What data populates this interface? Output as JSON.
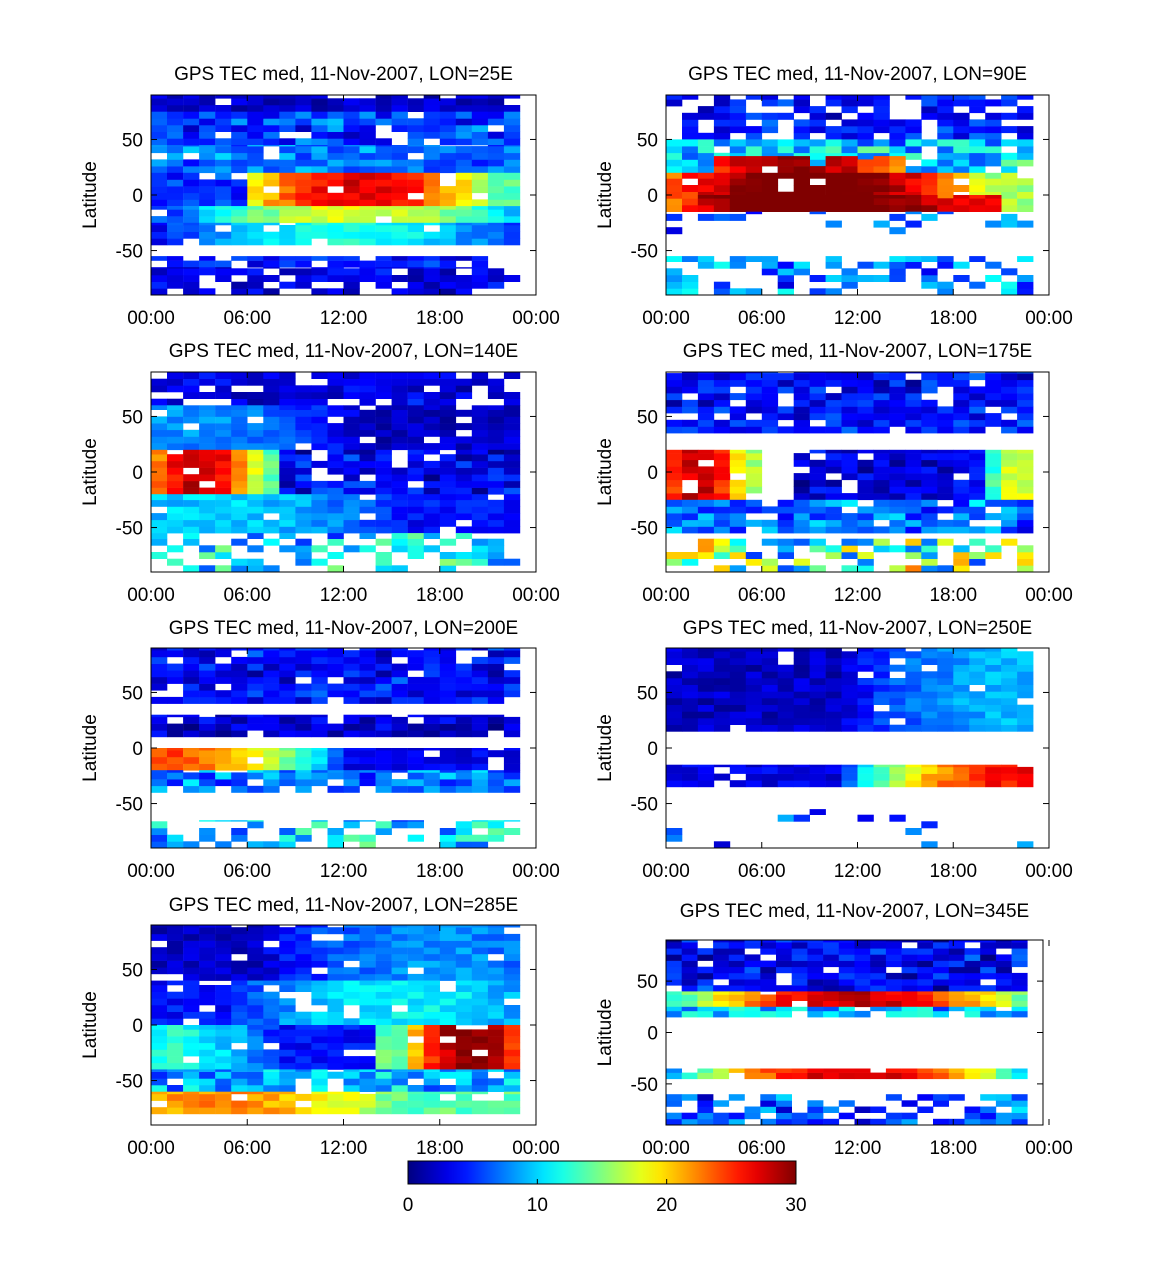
{
  "figure": {
    "colorbar": {
      "colormap": "jet",
      "range": [
        0,
        30
      ],
      "ticks": [
        "0",
        "10",
        "20",
        "30"
      ]
    }
  },
  "chart_data": [
    {
      "type": "heatmap",
      "title": "GPS TEC med, 11-Nov-2007, LON=25E",
      "ylabel": "Latitude",
      "x_ticks": [
        "00:00",
        "06:00",
        "12:00",
        "18:00",
        "00:00"
      ],
      "y_ticks": [
        "50",
        "0",
        "-50"
      ],
      "xlim_hours": [
        0,
        24
      ],
      "ylim": [
        -90,
        90
      ],
      "bands": [
        {
          "lat": [
            75,
            90
          ],
          "hours": [
            0,
            23
          ],
          "tec": [
            2,
            2
          ]
        },
        {
          "lat": [
            45,
            75
          ],
          "hours": [
            0,
            23
          ],
          "tec": [
            3,
            8
          ]
        },
        {
          "lat": [
            20,
            45
          ],
          "hours": [
            0,
            23
          ],
          "tec": [
            5,
            9
          ]
        },
        {
          "lat": [
            -10,
            20
          ],
          "hours": [
            0,
            6
          ],
          "tec": [
            4,
            6
          ]
        },
        {
          "lat": [
            -10,
            20
          ],
          "hours": [
            6,
            23
          ],
          "tec": [
            14,
            27
          ],
          "peak_hour": 13
        },
        {
          "lat": [
            -25,
            -10
          ],
          "hours": [
            0,
            23
          ],
          "tec": [
            6,
            18
          ],
          "peak_hour": 13
        },
        {
          "lat": [
            -45,
            -25
          ],
          "hours": [
            0,
            23
          ],
          "tec": [
            4,
            12
          ],
          "peak_hour": 12
        },
        {
          "lat": [
            -65,
            -55
          ],
          "hours": [
            0,
            23
          ],
          "tec": [
            3,
            6
          ],
          "fill": 0.8
        },
        {
          "lat": [
            -90,
            -65
          ],
          "hours": [
            0,
            23
          ],
          "tec": [
            2,
            4
          ],
          "fill": 0.7
        }
      ]
    },
    {
      "type": "heatmap",
      "title": "GPS TEC med, 11-Nov-2007, LON=90E",
      "ylabel": "Latitude",
      "x_ticks": [
        "00:00",
        "06:00",
        "12:00",
        "18:00",
        "00:00"
      ],
      "y_ticks": [
        "50",
        "0",
        "-50"
      ],
      "xlim_hours": [
        0,
        24
      ],
      "ylim": [
        -90,
        90
      ],
      "bands": [
        {
          "lat": [
            50,
            90
          ],
          "hours": [
            0,
            23
          ],
          "tec": [
            2,
            6
          ],
          "fill": 0.7
        },
        {
          "lat": [
            20,
            50
          ],
          "hours": [
            0,
            23
          ],
          "tec": [
            6,
            14
          ],
          "fill": 0.85
        },
        {
          "lat": [
            20,
            35
          ],
          "hours": [
            3,
            15
          ],
          "tec": [
            22,
            30
          ],
          "peak_hour": 8
        },
        {
          "lat": [
            -15,
            20
          ],
          "hours": [
            0,
            23
          ],
          "tec": [
            16,
            32
          ],
          "peak_hour": 9
        },
        {
          "lat": [
            -15,
            0
          ],
          "hours": [
            2,
            21
          ],
          "tec": [
            26,
            32
          ],
          "peak_hour": 9
        },
        {
          "lat": [
            -35,
            -15
          ],
          "hours": [
            0,
            23
          ],
          "tec": [
            4,
            10
          ],
          "fill": 0.2
        },
        {
          "lat": [
            -90,
            -55
          ],
          "hours": [
            0,
            23
          ],
          "tec": [
            4,
            11
          ],
          "fill": 0.5
        }
      ]
    },
    {
      "type": "heatmap",
      "title": "GPS TEC med, 11-Nov-2007, LON=140E",
      "ylabel": "Latitude",
      "x_ticks": [
        "00:00",
        "06:00",
        "12:00",
        "18:00",
        "00:00"
      ],
      "y_ticks": [
        "50",
        "0",
        "-50"
      ],
      "xlim_hours": [
        0,
        24
      ],
      "ylim": [
        -90,
        90
      ],
      "bands": [
        {
          "lat": [
            60,
            90
          ],
          "hours": [
            0,
            23
          ],
          "tec": [
            2,
            4
          ],
          "fill": 0.85
        },
        {
          "lat": [
            20,
            60
          ],
          "hours": [
            0,
            23
          ],
          "tec": [
            2,
            8
          ],
          "peak_hour": 2
        },
        {
          "lat": [
            -20,
            20
          ],
          "hours": [
            0,
            8
          ],
          "tec": [
            14,
            28
          ],
          "peak_hour": 3
        },
        {
          "lat": [
            -20,
            20
          ],
          "hours": [
            8,
            23
          ],
          "tec": [
            1,
            6
          ]
        },
        {
          "lat": [
            -55,
            -20
          ],
          "hours": [
            0,
            23
          ],
          "tec": [
            4,
            10
          ],
          "peak_hour": 4
        },
        {
          "lat": [
            -90,
            -55
          ],
          "hours": [
            0,
            23
          ],
          "tec": [
            6,
            15
          ],
          "fill": 0.5
        }
      ]
    },
    {
      "type": "heatmap",
      "title": "GPS TEC med, 11-Nov-2007, LON=175E",
      "ylabel": "Latitude",
      "x_ticks": [
        "00:00",
        "06:00",
        "12:00",
        "18:00",
        "00:00"
      ],
      "y_ticks": [
        "50",
        "0",
        "-50"
      ],
      "xlim_hours": [
        0,
        24
      ],
      "ylim": [
        -90,
        90
      ],
      "bands": [
        {
          "lat": [
            35,
            90
          ],
          "hours": [
            0,
            23
          ],
          "tec": [
            2,
            6
          ],
          "fill": 0.9
        },
        {
          "lat": [
            -25,
            20
          ],
          "hours": [
            0,
            6
          ],
          "tec": [
            16,
            28
          ],
          "peak_hour": 2
        },
        {
          "lat": [
            -25,
            20
          ],
          "hours": [
            8,
            18
          ],
          "tec": [
            1,
            4
          ]
        },
        {
          "lat": [
            -25,
            20
          ],
          "hours": [
            18,
            23
          ],
          "tec": [
            4,
            18
          ],
          "peak_hour": 22
        },
        {
          "lat": [
            -55,
            -25
          ],
          "hours": [
            0,
            23
          ],
          "tec": [
            4,
            10
          ]
        },
        {
          "lat": [
            -90,
            -60
          ],
          "hours": [
            0,
            23
          ],
          "tec": [
            6,
            22
          ],
          "fill": 0.6
        }
      ]
    },
    {
      "type": "heatmap",
      "title": "GPS TEC med, 11-Nov-2007, LON=200E",
      "ylabel": "Latitude",
      "x_ticks": [
        "00:00",
        "06:00",
        "12:00",
        "18:00",
        "00:00"
      ],
      "y_ticks": [
        "50",
        "0",
        "-50"
      ],
      "xlim_hours": [
        0,
        24
      ],
      "ylim": [
        -90,
        90
      ],
      "bands": [
        {
          "lat": [
            40,
            90
          ],
          "hours": [
            0,
            23
          ],
          "tec": [
            2,
            6
          ]
        },
        {
          "lat": [
            10,
            30
          ],
          "hours": [
            0,
            23
          ],
          "tec": [
            1,
            4
          ],
          "fill": 0.9
        },
        {
          "lat": [
            -20,
            0
          ],
          "hours": [
            0,
            23
          ],
          "tec": [
            3,
            24
          ],
          "peak_hour": 1
        },
        {
          "lat": [
            -40,
            -20
          ],
          "hours": [
            0,
            23
          ],
          "tec": [
            4,
            10
          ],
          "fill": 0.85
        },
        {
          "lat": [
            -90,
            -65
          ],
          "hours": [
            0,
            23
          ],
          "tec": [
            6,
            14
          ],
          "fill": 0.5
        }
      ]
    },
    {
      "type": "heatmap",
      "title": "GPS TEC med, 11-Nov-2007, LON=250E",
      "ylabel": "Latitude",
      "x_ticks": [
        "00:00",
        "06:00",
        "12:00",
        "18:00",
        "00:00"
      ],
      "y_ticks": [
        "50",
        "0",
        "-50"
      ],
      "xlim_hours": [
        0,
        24
      ],
      "ylim": [
        -90,
        90
      ],
      "bands": [
        {
          "lat": [
            15,
            90
          ],
          "hours": [
            0,
            23
          ],
          "tec": [
            2,
            9
          ],
          "peak_hour": 22
        },
        {
          "lat": [
            -35,
            -15
          ],
          "hours": [
            0,
            23
          ],
          "tec": [
            3,
            26
          ],
          "peak_hour": 22,
          "fill": 0.95
        },
        {
          "lat": [
            -90,
            -55
          ],
          "hours": [
            0,
            23
          ],
          "tec": [
            3,
            8
          ],
          "fill": 0.12
        }
      ]
    },
    {
      "type": "heatmap",
      "title": "GPS TEC med, 11-Nov-2007, LON=285E",
      "ylabel": "Latitude",
      "x_ticks": [
        "00:00",
        "06:00",
        "12:00",
        "18:00",
        "00:00"
      ],
      "y_ticks": [
        "50",
        "0",
        "-50"
      ],
      "xlim_hours": [
        0,
        24
      ],
      "ylim": [
        -90,
        90
      ],
      "bands": [
        {
          "lat": [
            40,
            90
          ],
          "hours": [
            0,
            23
          ],
          "tec": [
            2,
            8
          ],
          "peak_hour": 18
        },
        {
          "lat": [
            0,
            40
          ],
          "hours": [
            0,
            23
          ],
          "tec": [
            4,
            11
          ],
          "peak_hour": 16
        },
        {
          "lat": [
            -40,
            0
          ],
          "hours": [
            0,
            14
          ],
          "tec": [
            4,
            12
          ],
          "peak_hour": 1
        },
        {
          "lat": [
            -40,
            0
          ],
          "hours": [
            14,
            23
          ],
          "tec": [
            14,
            30
          ],
          "peak_hour": 20
        },
        {
          "lat": [
            -60,
            -40
          ],
          "hours": [
            0,
            23
          ],
          "tec": [
            6,
            12
          ]
        },
        {
          "lat": [
            -80,
            -60
          ],
          "hours": [
            0,
            23
          ],
          "tec": [
            14,
            22
          ],
          "peak_hour": 4
        }
      ]
    },
    {
      "type": "heatmap",
      "title": "GPS TEC med, 11-Nov-2007, LON=345E",
      "ylabel": "Latitude",
      "x_ticks": [
        "00:00",
        "06:00",
        "12:00",
        "18:00",
        "00:00"
      ],
      "y_ticks": [
        "50",
        "0",
        "-50"
      ],
      "xlim_hours": [
        0,
        24
      ],
      "ylim": [
        -90,
        90
      ],
      "bands": [
        {
          "lat": [
            40,
            90
          ],
          "hours": [
            0,
            23
          ],
          "tec": [
            1,
            6
          ]
        },
        {
          "lat": [
            25,
            40
          ],
          "hours": [
            0,
            23
          ],
          "tec": [
            12,
            28
          ],
          "peak_hour": 12
        },
        {
          "lat": [
            15,
            25
          ],
          "hours": [
            0,
            23
          ],
          "tec": [
            6,
            14
          ],
          "fill": 0.9
        },
        {
          "lat": [
            -45,
            -35
          ],
          "hours": [
            0,
            23
          ],
          "tec": [
            8,
            28
          ],
          "peak_hour": 12
        },
        {
          "lat": [
            -90,
            -60
          ],
          "hours": [
            0,
            23
          ],
          "tec": [
            3,
            10
          ],
          "fill": 0.6
        }
      ]
    }
  ]
}
